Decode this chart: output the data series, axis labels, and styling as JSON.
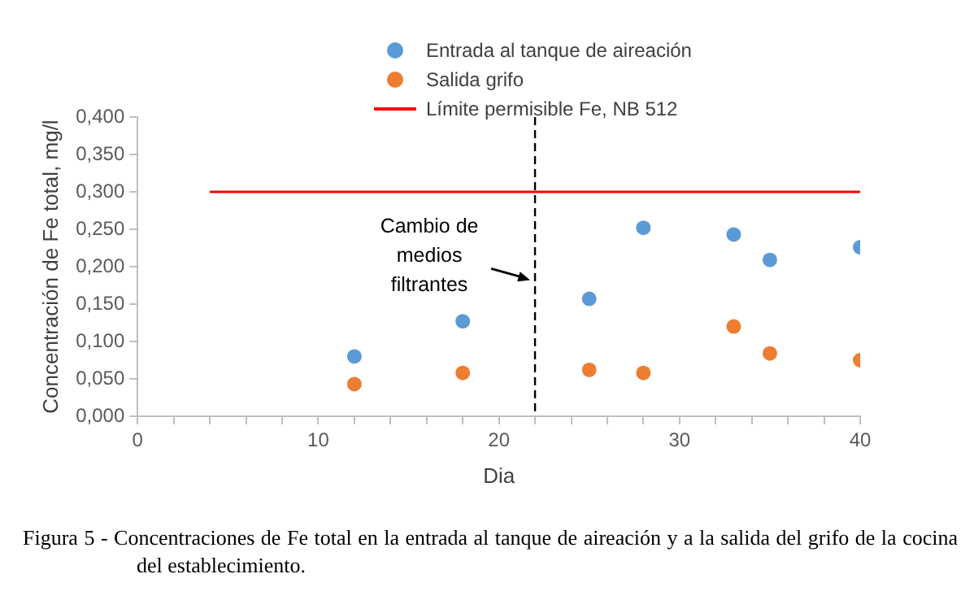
{
  "chart_data": {
    "type": "scatter",
    "xlabel": "Dia",
    "ylabel": "Concentración de Fe total, mg/l",
    "xlim": [
      0,
      40
    ],
    "xticks": [
      0,
      {
        "value": 2,
        "label": null
      },
      {
        "value": 4,
        "label": null
      },
      {
        "value": 6,
        "label": null
      },
      {
        "value": 8,
        "label": null
      },
      10,
      {
        "value": 12,
        "label": null
      },
      {
        "value": 14,
        "label": null
      },
      {
        "value": 16,
        "label": null
      },
      {
        "value": 18,
        "label": null
      },
      20,
      {
        "value": 22,
        "label": null
      },
      {
        "value": 24,
        "label": null
      },
      {
        "value": 26,
        "label": null
      },
      {
        "value": 28,
        "label": null
      },
      30,
      {
        "value": 32,
        "label": null
      },
      {
        "value": 34,
        "label": null
      },
      {
        "value": 36,
        "label": null
      },
      {
        "value": 38,
        "label": null
      },
      40
    ],
    "ylim": [
      0,
      0.4
    ],
    "yticks": [
      {
        "value": 0,
        "label": "0,000"
      },
      {
        "value": 0.05,
        "label": "0,050"
      },
      {
        "value": 0.1,
        "label": "0,100"
      },
      {
        "value": 0.15,
        "label": "0,150"
      },
      {
        "value": 0.2,
        "label": "0,200"
      },
      {
        "value": 0.25,
        "label": "0,250"
      },
      {
        "value": 0.3,
        "label": "0,300"
      },
      {
        "value": 0.35,
        "label": "0,350"
      },
      {
        "value": 0.4,
        "label": "0,400"
      }
    ],
    "grid": false,
    "legend": "top",
    "marker": "circle",
    "series": [
      {
        "name": "Entrada al tanque de aireación",
        "color": "#5b9bd5",
        "x": [
          12,
          18,
          25,
          28,
          33,
          35,
          40
        ],
        "values": [
          0.08,
          0.127,
          0.157,
          0.252,
          0.243,
          0.209,
          0.226
        ]
      },
      {
        "name": "Salida grifo",
        "color": "#ed7d31",
        "x": [
          12,
          18,
          25,
          28,
          33,
          35,
          40
        ],
        "values": [
          0.043,
          0.058,
          0.062,
          0.058,
          0.12,
          0.084,
          0.075
        ]
      },
      {
        "name": "Límite permisible Fe, NB 512",
        "type": "line",
        "color": "#ff0000",
        "marker": "none",
        "x": [
          4,
          40
        ],
        "values": [
          0.3,
          0.3
        ]
      }
    ],
    "ref_lines": [
      {
        "axis": "x",
        "value": 22,
        "color": "#000000",
        "line_style": "dashed"
      }
    ],
    "annotations": [
      {
        "text": "Cambio de medios filtrantes",
        "x": 22,
        "y": 0.18
      },
      "Figura 5 - Concentraciones de Fe total en la entrada al tanque de aireación y a la salida del grifo de la cocina del establecimiento."
    ]
  }
}
